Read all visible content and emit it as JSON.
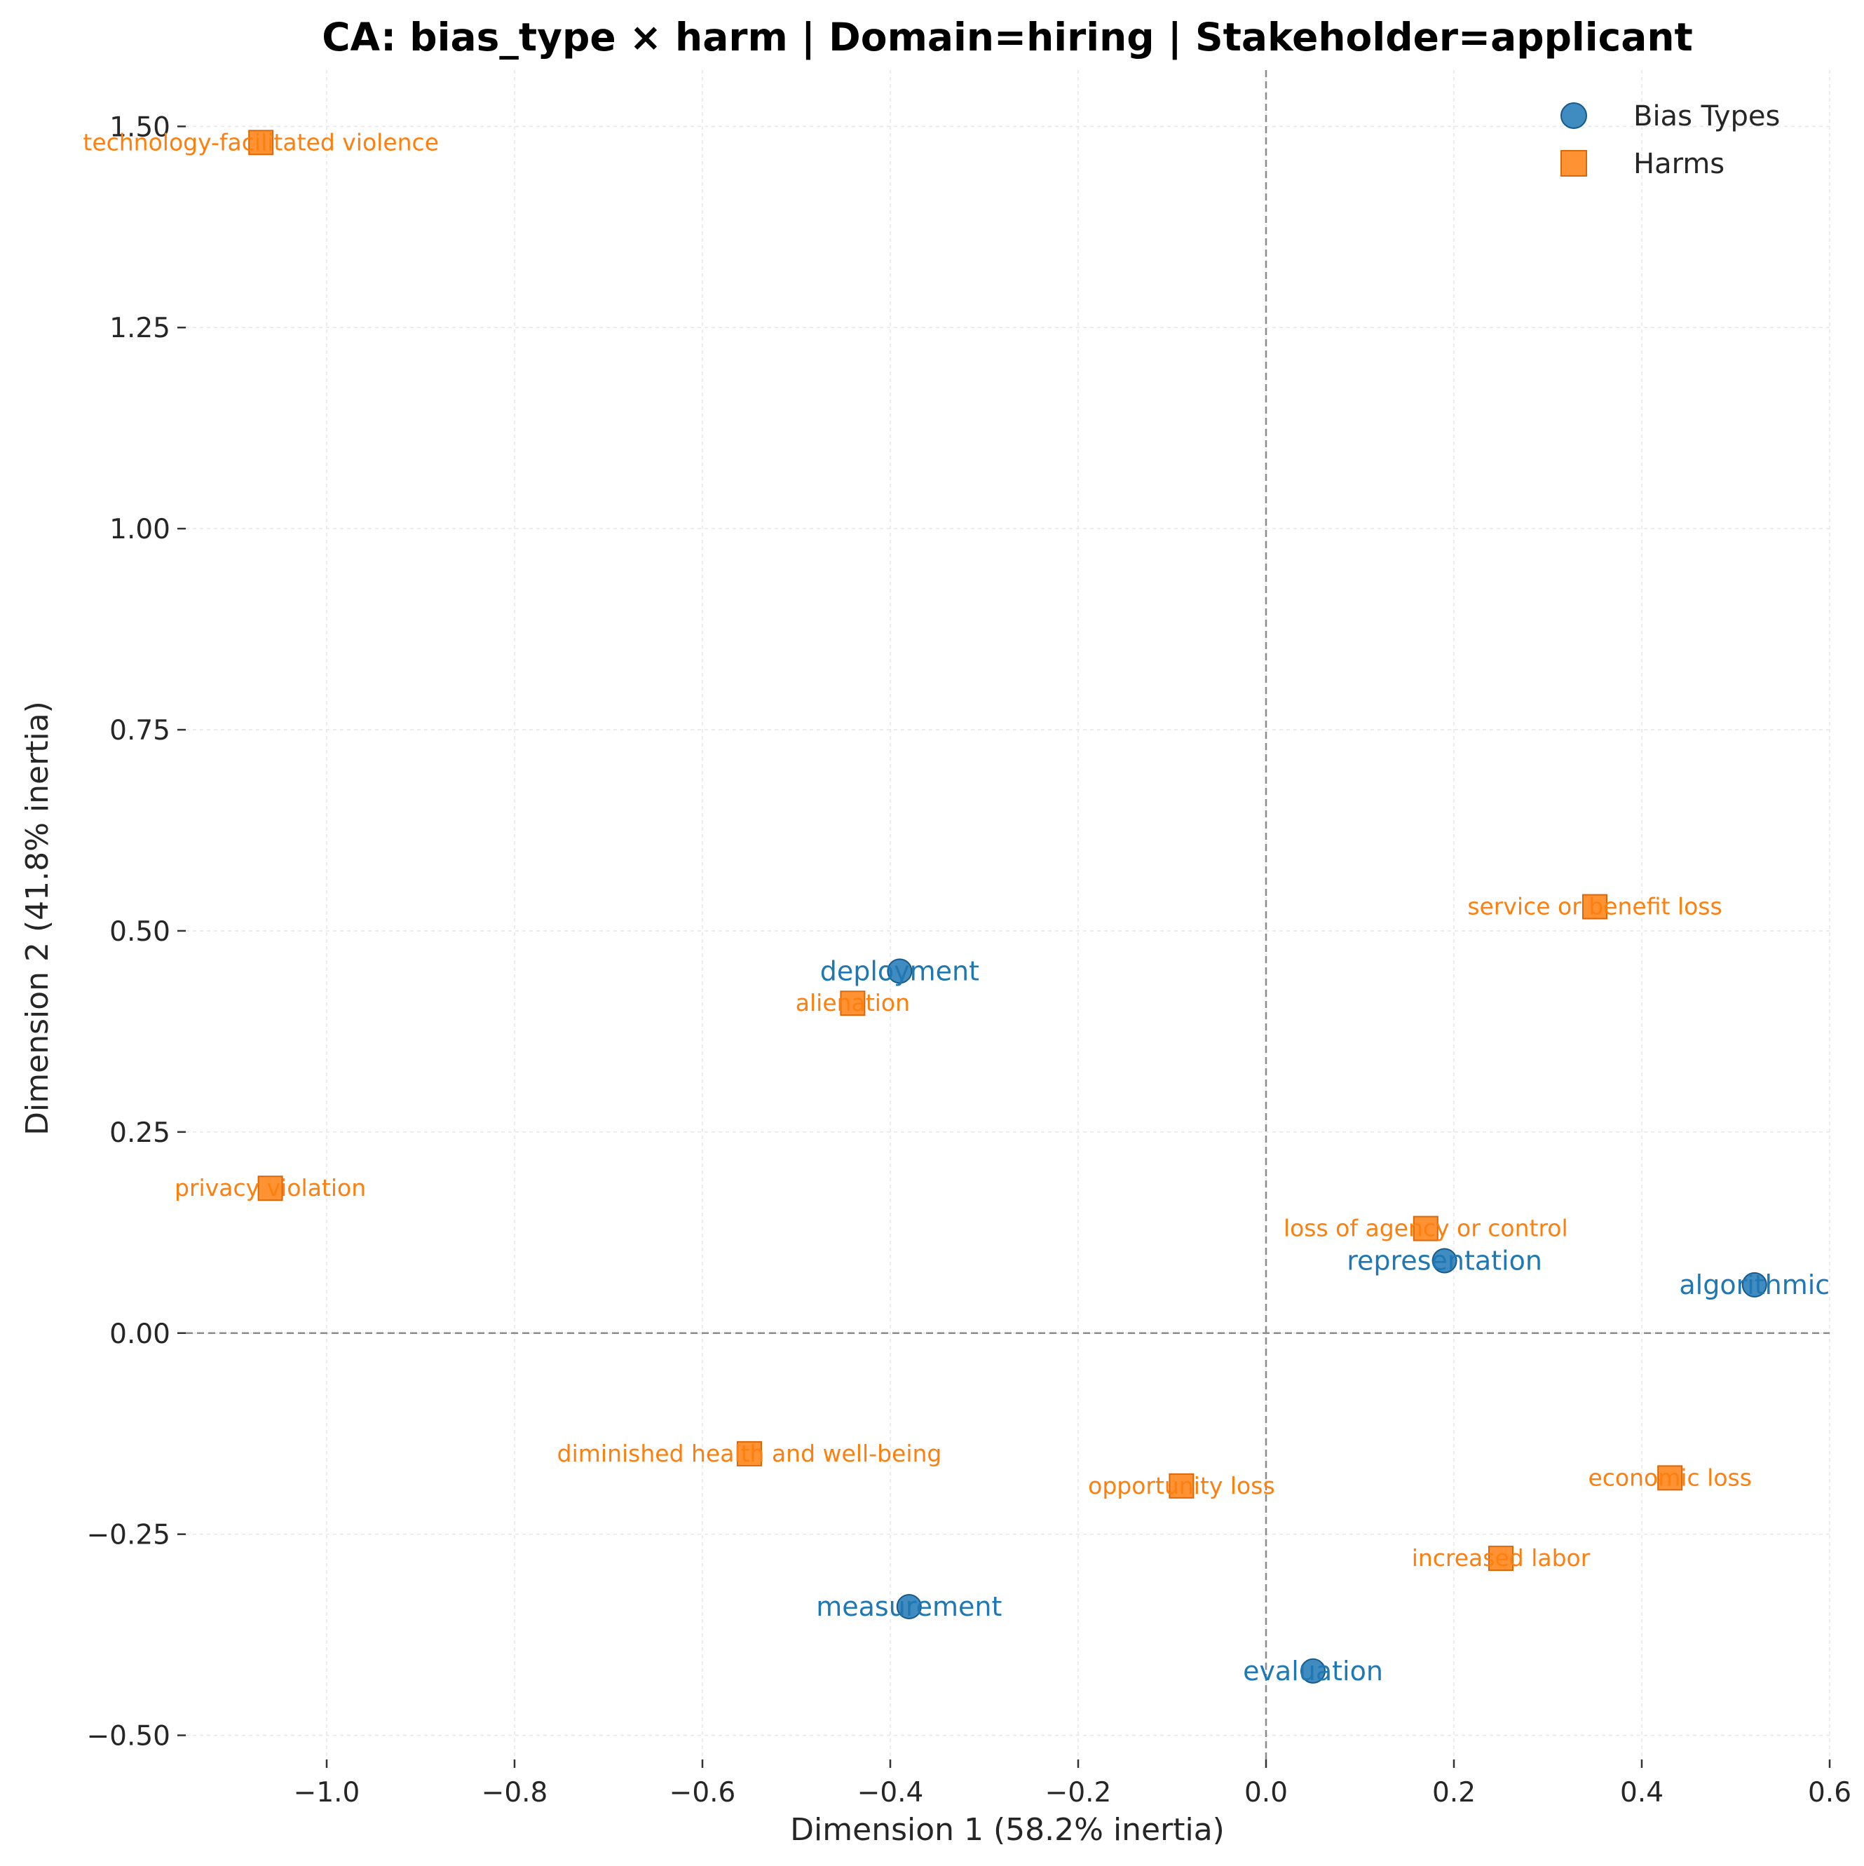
{
  "chart_data": {
    "type": "scatter",
    "title": "CA: bias_type × harm | Domain=hiring | Stakeholder=applicant",
    "xlabel": "Dimension 1 (58.2% inertia)",
    "ylabel": "Dimension 2 (41.8% inertia)",
    "xlim": [
      -1.15,
      0.6
    ],
    "ylim": [
      -0.53,
      1.57
    ],
    "xticks": [
      -1.0,
      -0.8,
      -0.6,
      -0.4,
      -0.2,
      0.0,
      0.2,
      0.4,
      0.6
    ],
    "xtick_labels": [
      "−1.0",
      "−0.8",
      "−0.6",
      "−0.4",
      "−0.2",
      "0.0",
      "0.2",
      "0.4",
      "0.6"
    ],
    "yticks": [
      -0.5,
      -0.25,
      0.0,
      0.25,
      0.5,
      0.75,
      1.0,
      1.25,
      1.5
    ],
    "ytick_labels": [
      "−0.50",
      "−0.25",
      "0.00",
      "0.25",
      "0.50",
      "0.75",
      "1.00",
      "1.25",
      "1.50"
    ],
    "grid": true,
    "reference_lines": {
      "x": 0.0,
      "y": 0.0
    },
    "legend": {
      "placement": "top-right"
    },
    "series": [
      {
        "name": "Bias Types",
        "marker": "circle",
        "color": "#1f77b4",
        "points": [
          {
            "label": "deployment",
            "x": -0.39,
            "y": 0.45
          },
          {
            "label": "representation",
            "x": 0.19,
            "y": 0.09
          },
          {
            "label": "algorithmic",
            "x": 0.52,
            "y": 0.06
          },
          {
            "label": "measurement",
            "x": -0.38,
            "y": -0.34
          },
          {
            "label": "evaluation",
            "x": 0.05,
            "y": -0.42
          }
        ]
      },
      {
        "name": "Harms",
        "marker": "square",
        "color": "#ff7f0e",
        "points": [
          {
            "label": "technology-facilitated violence",
            "x": -1.07,
            "y": 1.48
          },
          {
            "label": "service or benefit loss",
            "x": 0.35,
            "y": 0.53
          },
          {
            "label": "alienation",
            "x": -0.44,
            "y": 0.41
          },
          {
            "label": "privacy violation",
            "x": -1.06,
            "y": 0.18
          },
          {
            "label": "loss of agency or control",
            "x": 0.17,
            "y": 0.13
          },
          {
            "label": "diminished health and well-being",
            "x": -0.55,
            "y": -0.15
          },
          {
            "label": "opportunity loss",
            "x": -0.09,
            "y": -0.19
          },
          {
            "label": "economic loss",
            "x": 0.43,
            "y": -0.18
          },
          {
            "label": "increased labor",
            "x": 0.25,
            "y": -0.28
          }
        ]
      }
    ]
  }
}
